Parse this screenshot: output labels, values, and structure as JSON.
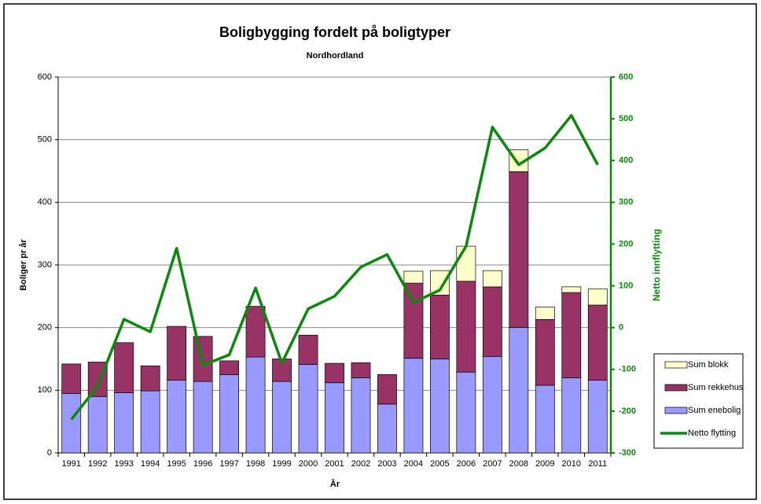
{
  "chart_data": {
    "type": "bar",
    "title": "Boligbygging fordelt på boligtyper",
    "subtitle": "Nordhordland",
    "x_label": "År",
    "y_label": "Boliger pr år",
    "y2_label": "Netto innflytting",
    "categories": [
      "1991",
      "1992",
      "1993",
      "1994",
      "1995",
      "1996",
      "1997",
      "1998",
      "1999",
      "2000",
      "2001",
      "2002",
      "2003",
      "2004",
      "2005",
      "2006",
      "2007",
      "2008",
      "2009",
      "2010",
      "2011"
    ],
    "series": [
      {
        "name": "Sum enebolig",
        "color": "#9999ff",
        "values": [
          95,
          90,
          96,
          99,
          116,
          114,
          125,
          153,
          114,
          141,
          112,
          120,
          78,
          151,
          150,
          129,
          154,
          200,
          108,
          120,
          116
        ]
      },
      {
        "name": "Sum rekkehus",
        "color": "#993366",
        "values": [
          47,
          55,
          80,
          40,
          86,
          72,
          22,
          81,
          36,
          47,
          31,
          24,
          47,
          120,
          102,
          145,
          111,
          249,
          105,
          136,
          120
        ]
      },
      {
        "name": "Sum blokk",
        "color": "#ffffcc",
        "values": [
          0,
          0,
          0,
          0,
          0,
          0,
          0,
          0,
          0,
          0,
          0,
          0,
          0,
          19,
          39,
          56,
          26,
          35,
          20,
          9,
          26
        ]
      },
      {
        "name": "Netto flytting",
        "color": "#0a8a0a",
        "type": "line",
        "axis": "y2",
        "values": [
          -220,
          -140,
          20,
          -10,
          190,
          -90,
          -65,
          95,
          -85,
          45,
          75,
          145,
          175,
          60,
          90,
          195,
          480,
          390,
          430,
          508,
          390
        ]
      }
    ],
    "ylim": [
      0,
      600
    ],
    "yticks": [
      0,
      100,
      200,
      300,
      400,
      500,
      600
    ],
    "y2lim": [
      -300,
      600
    ],
    "y2ticks": [
      -300,
      -200,
      -100,
      0,
      100,
      200,
      300,
      400,
      500,
      600
    ],
    "grid": true,
    "legend": "right"
  }
}
